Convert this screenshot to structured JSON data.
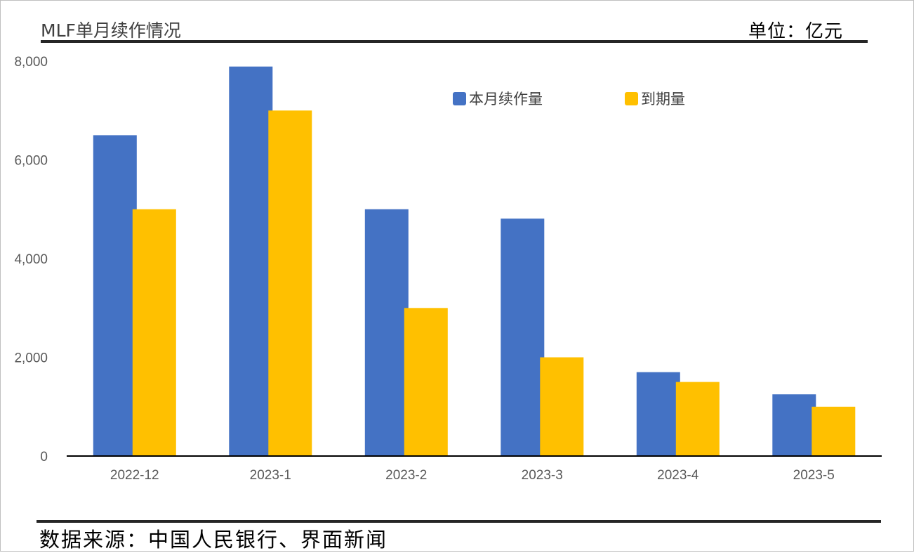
{
  "header": {
    "title": "MLF单月续作情况",
    "unit": "单位：亿元"
  },
  "footer": {
    "source": "数据来源：中国人民银行、界面新闻"
  },
  "chart_data": {
    "type": "bar",
    "categories": [
      "2022-12",
      "2023-1",
      "2023-2",
      "2023-3",
      "2023-4",
      "2023-5"
    ],
    "series": [
      {
        "name": "本月续作量",
        "values": [
          6500,
          7890,
          5000,
          4810,
          1700,
          1250
        ],
        "color": "#4472C4"
      },
      {
        "name": "到期量",
        "values": [
          5000,
          7000,
          3000,
          2000,
          1500,
          1000
        ],
        "color": "#FFC000"
      }
    ],
    "y_ticks": [
      "0",
      "2,000",
      "4,000",
      "6,000",
      "8,000"
    ],
    "ylim": [
      0,
      8000
    ],
    "grid": false,
    "legend_position": "top-right"
  }
}
